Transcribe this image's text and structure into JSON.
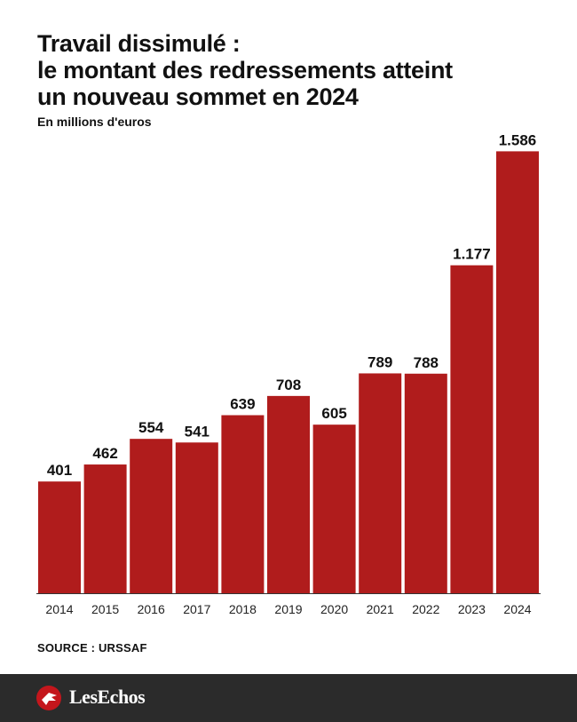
{
  "header": {
    "title_lines": [
      "Travail dissimulé :",
      "le montant des redressements atteint",
      "un nouveau sommet en 2024"
    ],
    "subtitle": "En millions d'euros"
  },
  "chart_data": {
    "type": "bar",
    "title": "Travail dissimulé : le montant des redressements atteint un nouveau sommet en 2024",
    "subtitle": "En millions d'euros",
    "xlabel": "",
    "ylabel": "",
    "categories": [
      "2014",
      "2015",
      "2016",
      "2017",
      "2018",
      "2019",
      "2020",
      "2021",
      "2022",
      "2023",
      "2024"
    ],
    "values": [
      401,
      462,
      554,
      541,
      639,
      708,
      605,
      789,
      788,
      1177,
      1586
    ],
    "value_labels": [
      "401",
      "462",
      "554",
      "541",
      "639",
      "708",
      "605",
      "789",
      "788",
      "1.177",
      "1.586"
    ],
    "ylim": [
      0,
      1600
    ],
    "grid": false,
    "legend": "none",
    "bar_color": "#b01c1c"
  },
  "source": "SOURCE : URSSAF",
  "footer": {
    "brand": "LesEchos",
    "logo_icon": "les-echos-logo-icon",
    "background_color": "#2b2b2b",
    "logo_color": "#c4161c"
  }
}
